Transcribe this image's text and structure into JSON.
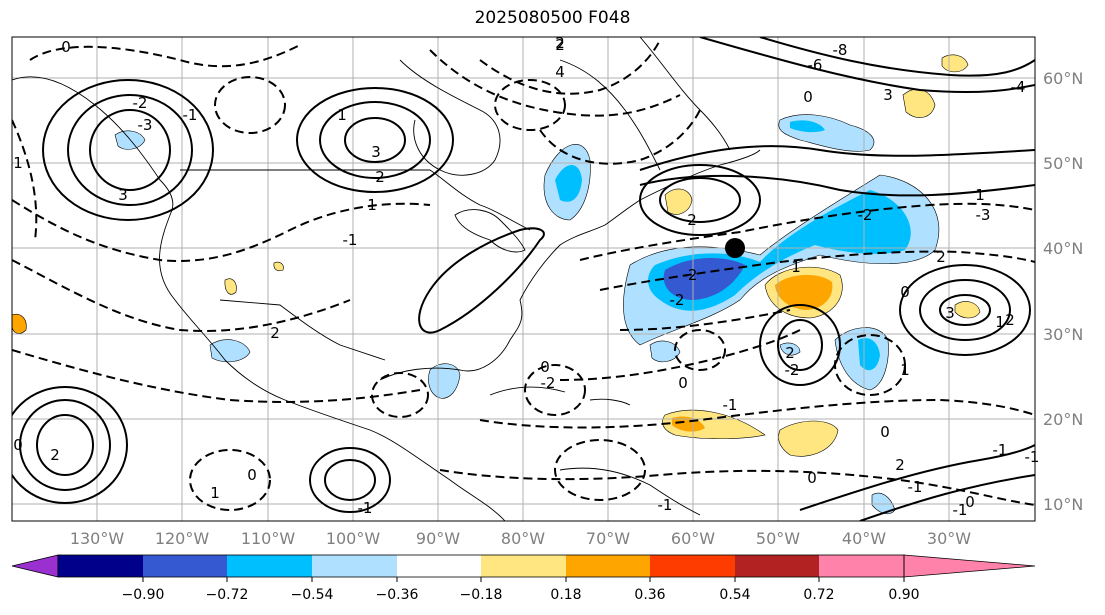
{
  "title": "2025080500 F048",
  "lon_labels": [
    "130°W",
    "120°W",
    "110°W",
    "100°W",
    "90°W",
    "80°W",
    "70°W",
    "60°W",
    "50°W",
    "40°W",
    "30°W"
  ],
  "lat_labels": [
    "60°N",
    "50°N",
    "40°N",
    "30°N",
    "20°N",
    "10°N"
  ],
  "colorbar": {
    "labels": [
      "−0.90",
      "−0.72",
      "−0.54",
      "−0.36",
      "−0.18",
      "0.18",
      "0.36",
      "0.54",
      "0.72",
      "0.90"
    ],
    "colors": [
      "#9b30d0",
      "#00008b",
      "#3559d0",
      "#00bfff",
      "#b0e0ff",
      "#ffffff",
      "#ffe680",
      "#ffa500",
      "#ff3c00",
      "#b22222",
      "#ff82ab"
    ]
  },
  "contour_labels": [
    "0",
    "2",
    "4",
    "-2",
    "-3",
    "3",
    "-1",
    "1",
    "-8",
    "-6",
    "0",
    "2",
    "2",
    "-4",
    "3",
    "-2",
    "-3",
    "1",
    "2",
    "-2",
    "0",
    "1",
    "2",
    "-2",
    "0",
    "-1",
    "-2",
    "1",
    "3",
    "-1",
    "-1",
    "0",
    "2",
    "0",
    "-1",
    "2",
    "0",
    "-2",
    "1",
    "-1",
    "0",
    "1",
    "-1",
    "0",
    "1",
    "3",
    "2",
    "2",
    "-1",
    "-1",
    "1",
    "0",
    "2"
  ],
  "marker": {
    "lon": -55,
    "lat": 40
  }
}
